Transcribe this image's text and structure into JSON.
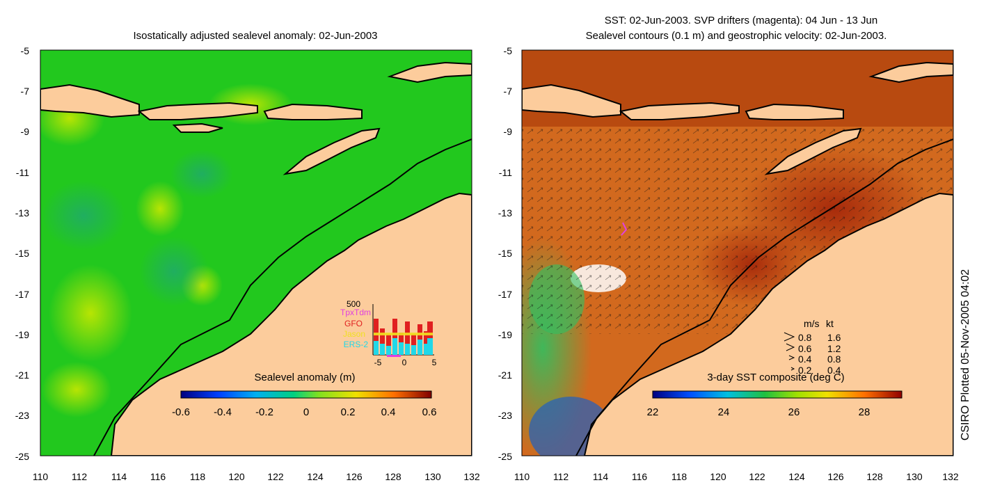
{
  "left_map": {
    "title": "Isostatically adjusted sealevel anomaly: 02-Jun-2003",
    "colorbar_label": "Sealevel anomaly (m)",
    "colorbar_ticks": [
      "-0.6",
      "-0.4",
      "-0.2",
      "0",
      "0.2",
      "0.4",
      "0.6"
    ],
    "x_ticks": [
      "110",
      "112",
      "114",
      "116",
      "118",
      "120",
      "122",
      "124",
      "126",
      "128",
      "130",
      "132"
    ],
    "y_ticks": [
      "-5",
      "-7",
      "-9",
      "-11",
      "-13",
      "-15",
      "-17",
      "-19",
      "-21",
      "-23",
      "-25"
    ],
    "inset": {
      "ymax_label": "500",
      "legend": [
        {
          "label": "TpxTdm",
          "color": "#e040e0"
        },
        {
          "label": "GFO",
          "color": "#e02020"
        },
        {
          "label": "Jason",
          "color": "#f0e020"
        },
        {
          "label": "ERS-2",
          "color": "#20d8e8"
        }
      ],
      "x_ticks": [
        "-5",
        "0",
        "5"
      ]
    }
  },
  "right_map": {
    "title_line1": "SST: 02-Jun-2003. SVP drifters (magenta): 04 Jun - 13 Jun",
    "title_line2": "Sealevel contours (0.1 m) and geostrophic velocity: 02-Jun-2003.",
    "colorbar_label": "3-day SST composite (deg C)",
    "colorbar_ticks": [
      "22",
      "24",
      "26",
      "28"
    ],
    "x_ticks": [
      "110",
      "112",
      "114",
      "116",
      "118",
      "120",
      "122",
      "124",
      "126",
      "128",
      "130",
      "132"
    ],
    "y_ticks": [
      "-5",
      "-7",
      "-9",
      "-11",
      "-13",
      "-15",
      "-17",
      "-19",
      "-21",
      "-23",
      "-25"
    ],
    "velocity_legend": {
      "header_ms": "m/s",
      "header_kt": "kt",
      "rows": [
        {
          "ms": "0.8",
          "kt": "1.6"
        },
        {
          "ms": "0.6",
          "kt": "1.2"
        },
        {
          "ms": "0.4",
          "kt": "0.8"
        },
        {
          "ms": "0.2",
          "kt": "0.4"
        }
      ]
    }
  },
  "credit": "CSIRO Plotted 05-Nov-2005 04:02",
  "colors": {
    "land": "#fccc9c",
    "ocean_sla": "#22c81e",
    "sst_warm": "#d2691e",
    "sst_hot": "#b03010",
    "sst_cool": "#30b040"
  }
}
